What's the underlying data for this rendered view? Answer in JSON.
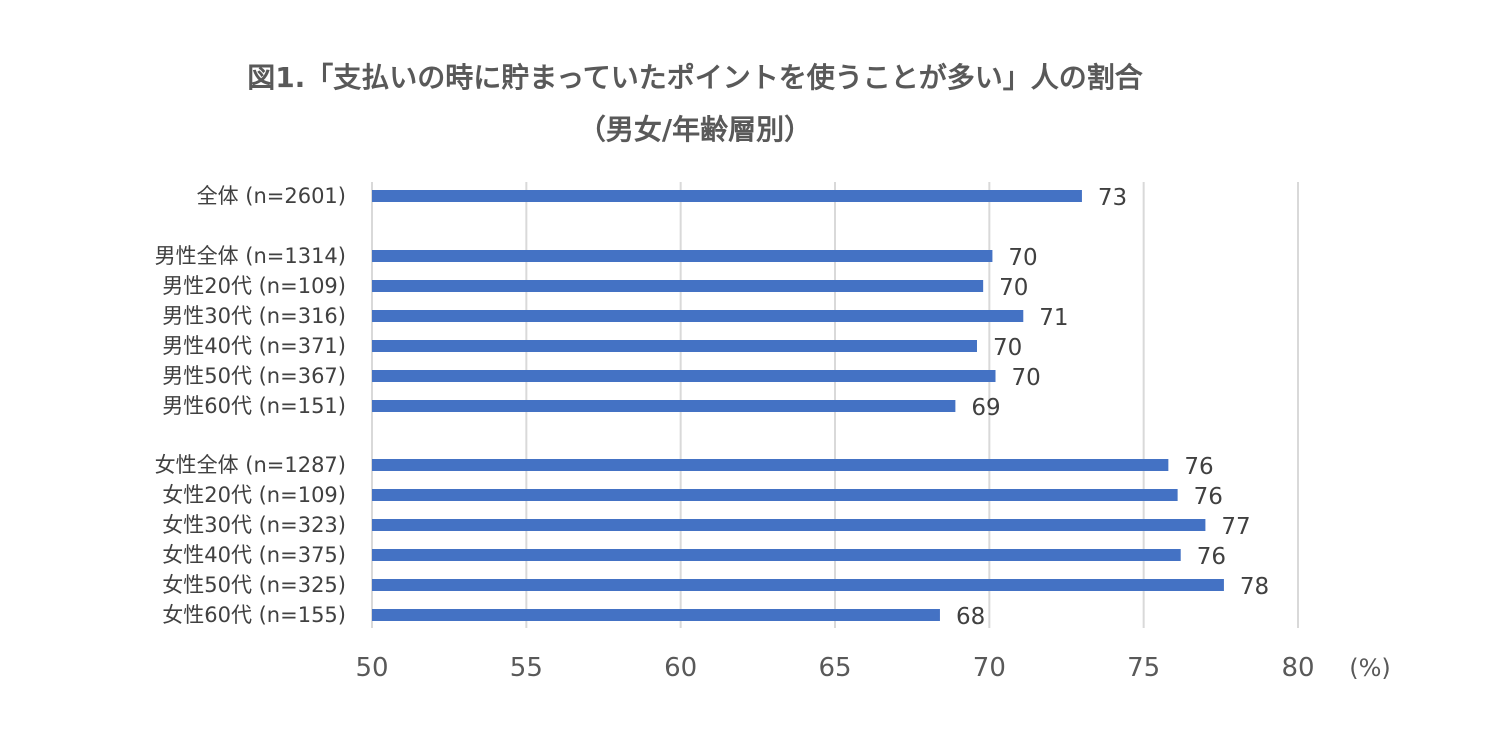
{
  "title": "図1.「支払いの時に貯まっていたポイントを使うことが多い」人の割合",
  "subtitle": "（男女/年齢層別）",
  "chart_data": {
    "type": "bar",
    "orientation": "horizontal",
    "title": "図1.「支払いの時に貯まっていたポイントを使うことが多い」人の割合",
    "subtitle": "（男女/年齢層別）",
    "unit_label": "(%)",
    "xlim": [
      50,
      80
    ],
    "x_ticks": [
      50,
      55,
      60,
      65,
      70,
      75,
      80
    ],
    "grid": true,
    "bar_color": "#4472C4",
    "categories": [
      {
        "label": "全体 (n=2601)",
        "value": 73.0,
        "display": "73"
      },
      {
        "label": "男性全体 (n=1314)",
        "value": 70.1,
        "display": "70"
      },
      {
        "label": "男性20代 (n=109)",
        "value": 69.8,
        "display": "70"
      },
      {
        "label": "男性30代 (n=316)",
        "value": 71.1,
        "display": "71"
      },
      {
        "label": "男性40代 (n=371)",
        "value": 69.6,
        "display": "70"
      },
      {
        "label": "男性50代 (n=367)",
        "value": 70.2,
        "display": "70"
      },
      {
        "label": "男性60代 (n=151)",
        "value": 68.9,
        "display": "69"
      },
      {
        "label": "女性全体 (n=1287)",
        "value": 75.8,
        "display": "76"
      },
      {
        "label": "女性20代 (n=109)",
        "value": 76.1,
        "display": "76"
      },
      {
        "label": "女性30代 (n=323)",
        "value": 77.0,
        "display": "77"
      },
      {
        "label": "女性40代 (n=375)",
        "value": 76.2,
        "display": "76"
      },
      {
        "label": "女性50代 (n=325)",
        "value": 77.6,
        "display": "78"
      },
      {
        "label": "女性60代 (n=155)",
        "value": 68.4,
        "display": "68"
      }
    ]
  }
}
